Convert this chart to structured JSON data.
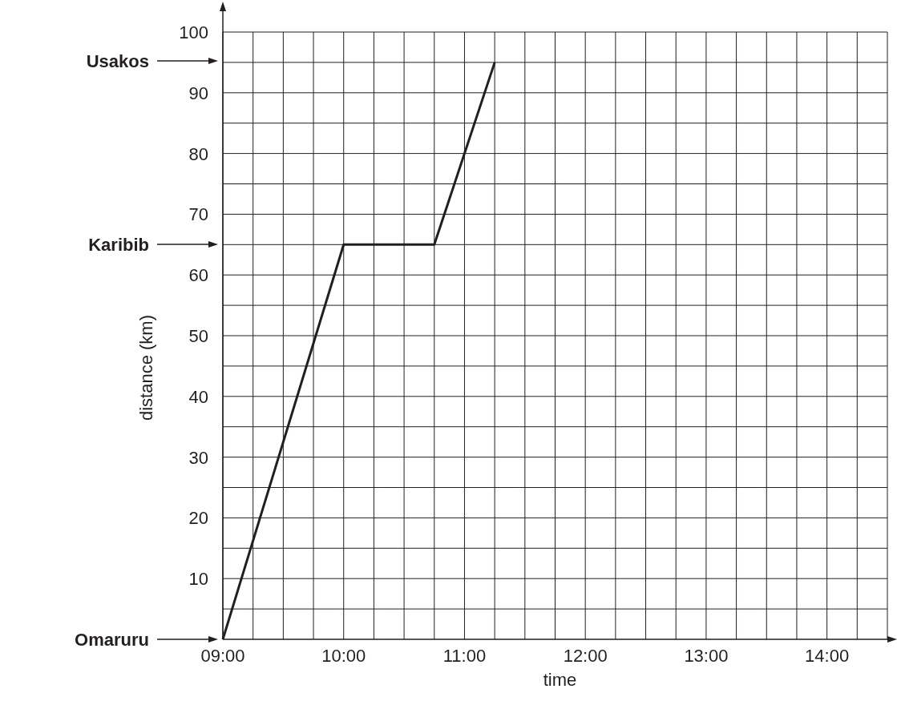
{
  "chart_data": {
    "type": "line",
    "xlabel": "time",
    "ylabel": "distance (km)",
    "x": [
      9,
      10,
      10.75,
      11.25
    ],
    "series": [
      {
        "color": "#231f20",
        "values": [
          0,
          65,
          65,
          95
        ]
      }
    ],
    "xlim": [
      9,
      14.5
    ],
    "ylim": [
      0,
      100
    ],
    "xticks": [
      {
        "value": 9,
        "label": "09:00"
      },
      {
        "value": 9.25,
        "label": null
      },
      {
        "value": 9.5,
        "label": null
      },
      {
        "value": 9.75,
        "label": null
      },
      {
        "value": 10,
        "label": "10:00"
      },
      {
        "value": 10.25,
        "label": null
      },
      {
        "value": 10.5,
        "label": null
      },
      {
        "value": 10.75,
        "label": null
      },
      {
        "value": 11,
        "label": "11:00"
      },
      {
        "value": 11.25,
        "label": null
      },
      {
        "value": 11.5,
        "label": null
      },
      {
        "value": 11.75,
        "label": null
      },
      {
        "value": 12,
        "label": "12:00"
      },
      {
        "value": 12.25,
        "label": null
      },
      {
        "value": 12.5,
        "label": null
      },
      {
        "value": 12.75,
        "label": null
      },
      {
        "value": 13,
        "label": "13:00"
      },
      {
        "value": 13.25,
        "label": null
      },
      {
        "value": 13.5,
        "label": null
      },
      {
        "value": 13.75,
        "label": null
      },
      {
        "value": 14,
        "label": "14:00"
      },
      {
        "value": 14.25,
        "label": null
      },
      {
        "value": 14.5,
        "label": null
      }
    ],
    "yticks": [
      {
        "value": 5,
        "label": null
      },
      10,
      {
        "value": 15,
        "label": null
      },
      20,
      {
        "value": 25,
        "label": null
      },
      30,
      {
        "value": 35,
        "label": null
      },
      40,
      {
        "value": 45,
        "label": null
      },
      50,
      {
        "value": 55,
        "label": null
      },
      60,
      {
        "value": 65,
        "label": null
      },
      70,
      {
        "value": 75,
        "label": null
      },
      80,
      {
        "value": 85,
        "label": null
      },
      90,
      {
        "value": 95,
        "label": null
      },
      100
    ],
    "grid": true,
    "marker": "none",
    "line_style": "solid",
    "annotations": [
      "Omaruru",
      "Karibib",
      "Usakos"
    ]
  }
}
